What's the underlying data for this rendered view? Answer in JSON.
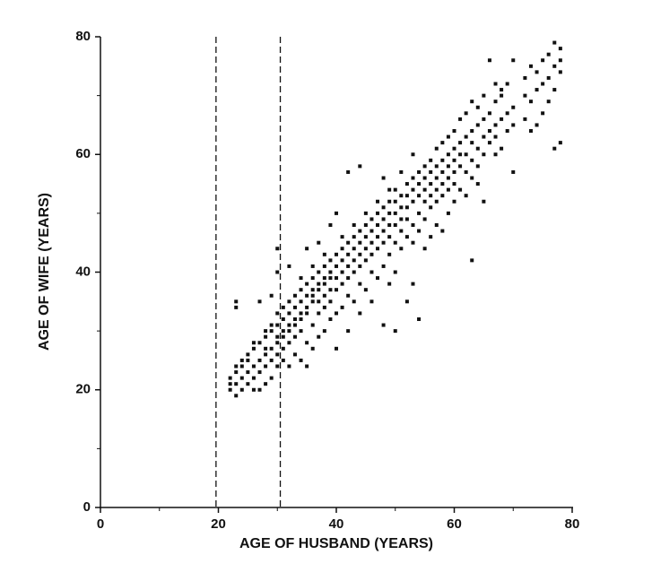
{
  "chart_data": {
    "type": "scatter",
    "x_label": "AGE OF HUSBAND (YEARS)",
    "y_label": "AGE OF WIFE (YEARS)",
    "xlim": [
      0,
      80
    ],
    "ylim": [
      0,
      80
    ],
    "xticks": [
      0,
      20,
      40,
      60,
      80
    ],
    "yticks": [
      0,
      20,
      40,
      60,
      80
    ],
    "xminorticks": [
      10,
      30,
      50,
      70
    ],
    "yminorticks": [
      10,
      30,
      50,
      70
    ],
    "vlines": [
      19.6,
      30.5
    ],
    "color": "#111111",
    "x": [
      22,
      22,
      22,
      23,
      23,
      23,
      23,
      23,
      23,
      24,
      24,
      24,
      24,
      25,
      25,
      25,
      25,
      26,
      26,
      26,
      26,
      26,
      27,
      27,
      27,
      27,
      27,
      28,
      28,
      28,
      28,
      28,
      28,
      29,
      29,
      29,
      29,
      29,
      29,
      30,
      30,
      30,
      30,
      30,
      30,
      30,
      30,
      31,
      31,
      31,
      31,
      31,
      31,
      32,
      32,
      32,
      32,
      32,
      32,
      32,
      33,
      33,
      33,
      33,
      33,
      33,
      34,
      34,
      34,
      34,
      34,
      34,
      34,
      35,
      35,
      35,
      35,
      35,
      35,
      35,
      36,
      36,
      36,
      36,
      36,
      36,
      36,
      37,
      37,
      37,
      37,
      37,
      37,
      37,
      38,
      38,
      38,
      38,
      38,
      38,
      38,
      39,
      39,
      39,
      39,
      39,
      39,
      39,
      40,
      40,
      40,
      40,
      40,
      40,
      40,
      41,
      41,
      41,
      41,
      41,
      41,
      42,
      42,
      42,
      42,
      42,
      42,
      42,
      43,
      43,
      43,
      43,
      43,
      43,
      44,
      44,
      44,
      44,
      44,
      44,
      44,
      45,
      45,
      45,
      45,
      45,
      45,
      46,
      46,
      46,
      46,
      46,
      46,
      47,
      47,
      47,
      47,
      47,
      47,
      48,
      48,
      48,
      48,
      48,
      48,
      48,
      49,
      49,
      49,
      49,
      49,
      49,
      49,
      50,
      50,
      50,
      50,
      50,
      50,
      50,
      51,
      51,
      51,
      51,
      51,
      51,
      52,
      52,
      52,
      52,
      52,
      52,
      53,
      53,
      53,
      53,
      53,
      53,
      53,
      54,
      54,
      54,
      54,
      54,
      54,
      55,
      55,
      55,
      55,
      55,
      55,
      56,
      56,
      56,
      56,
      56,
      56,
      57,
      57,
      57,
      57,
      57,
      57,
      58,
      58,
      58,
      58,
      58,
      58,
      59,
      59,
      59,
      59,
      59,
      59,
      60,
      60,
      60,
      60,
      60,
      60,
      61,
      61,
      61,
      61,
      61,
      62,
      62,
      62,
      62,
      62,
      63,
      63,
      63,
      63,
      63,
      63,
      64,
      64,
      64,
      64,
      64,
      65,
      65,
      65,
      65,
      65,
      66,
      66,
      66,
      66,
      67,
      67,
      67,
      67,
      67,
      68,
      68,
      68,
      68,
      69,
      69,
      69,
      70,
      70,
      70,
      70,
      72,
      72,
      72,
      73,
      73,
      73,
      74,
      74,
      74,
      75,
      75,
      75,
      76,
      76,
      76,
      77,
      77,
      77,
      77,
      78,
      78,
      78,
      78
    ],
    "y": [
      20,
      21,
      22,
      19,
      21,
      23,
      24,
      35,
      34,
      20,
      22,
      24,
      25,
      21,
      23,
      25,
      26,
      20,
      22,
      24,
      27,
      28,
      20,
      23,
      25,
      28,
      35,
      21,
      24,
      26,
      27,
      29,
      30,
      22,
      25,
      27,
      30,
      31,
      36,
      24,
      26,
      28,
      29,
      31,
      33,
      40,
      44,
      25,
      27,
      29,
      30,
      32,
      34,
      24,
      28,
      30,
      31,
      33,
      35,
      41,
      26,
      29,
      31,
      32,
      34,
      36,
      25,
      30,
      32,
      33,
      35,
      37,
      39,
      24,
      28,
      33,
      34,
      36,
      38,
      44,
      27,
      31,
      35,
      36,
      37,
      39,
      41,
      29,
      33,
      35,
      37,
      38,
      40,
      45,
      30,
      34,
      36,
      38,
      39,
      41,
      43,
      32,
      35,
      37,
      39,
      40,
      42,
      48,
      27,
      33,
      37,
      39,
      41,
      43,
      50,
      34,
      38,
      40,
      42,
      44,
      46,
      30,
      36,
      39,
      41,
      43,
      45,
      57,
      35,
      40,
      42,
      44,
      46,
      48,
      33,
      38,
      41,
      43,
      45,
      47,
      58,
      37,
      42,
      44,
      46,
      48,
      50,
      35,
      40,
      43,
      45,
      47,
      49,
      39,
      44,
      46,
      48,
      50,
      52,
      31,
      41,
      45,
      47,
      49,
      51,
      56,
      38,
      43,
      46,
      48,
      50,
      52,
      54,
      30,
      40,
      45,
      48,
      50,
      52,
      54,
      44,
      47,
      49,
      51,
      53,
      57,
      35,
      46,
      49,
      51,
      53,
      55,
      38,
      45,
      48,
      52,
      54,
      56,
      60,
      32,
      47,
      50,
      53,
      55,
      57,
      44,
      49,
      52,
      54,
      56,
      58,
      46,
      51,
      53,
      55,
      57,
      59,
      48,
      52,
      54,
      56,
      58,
      61,
      47,
      53,
      55,
      57,
      59,
      62,
      50,
      54,
      56,
      58,
      60,
      63,
      52,
      55,
      57,
      59,
      61,
      64,
      54,
      58,
      60,
      62,
      66,
      53,
      57,
      60,
      63,
      67,
      42,
      56,
      59,
      62,
      64,
      69,
      55,
      58,
      61,
      65,
      68,
      52,
      60,
      63,
      66,
      70,
      62,
      64,
      67,
      76,
      60,
      63,
      65,
      69,
      72,
      61,
      66,
      70,
      71,
      64,
      67,
      72,
      57,
      65,
      68,
      76,
      66,
      70,
      73,
      64,
      69,
      75,
      65,
      71,
      74,
      67,
      72,
      76,
      69,
      73,
      77,
      61,
      71,
      75,
      79,
      62,
      74,
      76,
      78
    ]
  }
}
